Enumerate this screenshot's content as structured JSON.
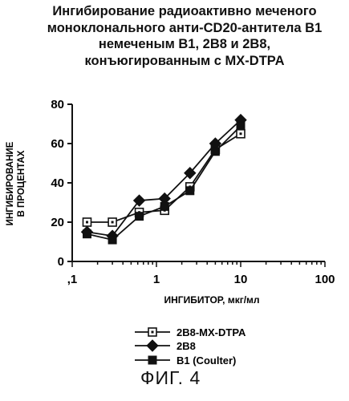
{
  "chart_data": {
    "type": "line",
    "title_lines": [
      "Ингибирование радиоактивно меченого",
      "моноклонального анти-CD20-антитела B1",
      "немеченым B1, 2B8 и 2B8,",
      "конъюгированным с MX-DTPA"
    ],
    "xlabel": "ИНГИБИТОР, мкг/мл",
    "ylabel_lines": [
      "ИНГИБИРОВАНИЕ",
      "В ПРОЦЕНТАХ"
    ],
    "xscale": "log",
    "xlim": [
      0.1,
      100
    ],
    "ylim": [
      0,
      80
    ],
    "x_ticks": [
      0.1,
      1,
      10,
      100
    ],
    "x_tick_labels": [
      ",1",
      "1",
      "10",
      "100"
    ],
    "y_ticks": [
      0,
      20,
      40,
      60,
      80
    ],
    "y_tick_labels": [
      "0",
      "20",
      "40",
      "60",
      "80"
    ],
    "legend_position": "below",
    "series": [
      {
        "name": "2B8-MX-DTPA",
        "marker": "open-square",
        "x": [
          0.15,
          0.3,
          0.625,
          1.25,
          2.5,
          5,
          10
        ],
        "values": [
          20,
          20,
          25,
          26,
          38,
          57,
          65
        ]
      },
      {
        "name": "2B8",
        "marker": "filled-diamond",
        "x": [
          0.15,
          0.3,
          0.625,
          1.25,
          2.5,
          5,
          10
        ],
        "values": [
          15,
          13,
          31,
          32,
          45,
          60,
          72
        ]
      },
      {
        "name": "B1 (Coulter)",
        "marker": "filled-square",
        "x": [
          0.15,
          0.3,
          0.625,
          1.25,
          2.5,
          5,
          10
        ],
        "values": [
          14,
          11,
          23,
          28,
          36,
          56,
          69
        ]
      }
    ]
  },
  "figure_caption": "ФИГ. 4"
}
